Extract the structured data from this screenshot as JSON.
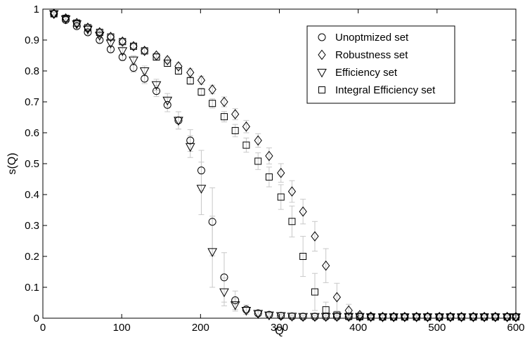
{
  "chart_data": {
    "type": "scatter",
    "xlabel": "Q",
    "ylabel": "s(Q)",
    "xlim": [
      0,
      600
    ],
    "ylim": [
      0,
      1
    ],
    "x_ticks": [
      "0",
      "100",
      "200",
      "300",
      "400",
      "500",
      "600"
    ],
    "y_ticks": [
      "0",
      "0.1",
      "0.2",
      "0.3",
      "0.4",
      "0.5",
      "0.6",
      "0.7",
      "0.8",
      "0.9",
      "1"
    ],
    "grid": false,
    "legend_position": "top-right",
    "error_bar_color": "#c8c8c8",
    "series": [
      {
        "name": "Unoptmized set",
        "marker": "circle",
        "x": [
          14,
          29,
          43,
          57,
          72,
          86,
          101,
          115,
          129,
          144,
          158,
          172,
          187,
          201,
          215,
          230,
          244,
          258,
          273,
          287,
          302,
          316,
          330,
          345,
          359,
          373,
          388,
          402,
          416,
          431,
          445,
          459,
          474,
          488,
          503,
          517,
          531,
          546,
          560,
          574,
          589,
          600
        ],
        "y": [
          0.985,
          0.965,
          0.945,
          0.925,
          0.9,
          0.87,
          0.845,
          0.81,
          0.775,
          0.735,
          0.69,
          0.64,
          0.575,
          0.478,
          0.312,
          0.132,
          0.058,
          0.028,
          0.016,
          0.011,
          0.008,
          0.006,
          0.005,
          0.005,
          0.005,
          0.005,
          0.005,
          0.005,
          0.005,
          0.004,
          0.004,
          0.004,
          0.004,
          0.004,
          0.004,
          0.004,
          0.004,
          0.004,
          0.004,
          0.004,
          0.004,
          0.004
        ],
        "err": [
          0.005,
          0.006,
          0.007,
          0.008,
          0.009,
          0.01,
          0.012,
          0.014,
          0.016,
          0.018,
          0.022,
          0.028,
          0.035,
          0.065,
          0.11,
          0.08,
          0.03,
          0.015,
          0.008,
          0.006,
          0.005,
          0.004,
          0.004,
          0.004,
          0.004,
          0.004,
          0.004,
          0.004,
          0.004,
          0.004,
          0.004,
          0.004,
          0.004,
          0.004,
          0.004,
          0.004,
          0.004,
          0.004,
          0.004,
          0.004,
          0.004,
          0.004
        ]
      },
      {
        "name": "Robustness set",
        "marker": "diamond",
        "x": [
          14,
          29,
          43,
          57,
          72,
          86,
          101,
          115,
          129,
          144,
          158,
          172,
          187,
          201,
          215,
          230,
          244,
          258,
          273,
          287,
          302,
          316,
          330,
          345,
          359,
          373,
          388,
          402,
          416,
          431,
          445,
          459,
          474,
          488,
          503,
          517,
          531,
          546,
          560,
          574,
          589,
          600
        ],
        "y": [
          0.985,
          0.97,
          0.955,
          0.94,
          0.925,
          0.91,
          0.895,
          0.88,
          0.865,
          0.85,
          0.835,
          0.815,
          0.795,
          0.77,
          0.74,
          0.7,
          0.66,
          0.62,
          0.575,
          0.525,
          0.47,
          0.41,
          0.345,
          0.265,
          0.17,
          0.068,
          0.025,
          0.01,
          0.005,
          0.004,
          0.004,
          0.004,
          0.004,
          0.004,
          0.004,
          0.004,
          0.004,
          0.004,
          0.004,
          0.004,
          0.004,
          0.004
        ],
        "err": [
          0.004,
          0.005,
          0.005,
          0.006,
          0.006,
          0.007,
          0.007,
          0.008,
          0.008,
          0.009,
          0.01,
          0.011,
          0.012,
          0.013,
          0.014,
          0.016,
          0.018,
          0.02,
          0.022,
          0.026,
          0.03,
          0.035,
          0.04,
          0.048,
          0.055,
          0.045,
          0.02,
          0.01,
          0.006,
          0.004,
          0.004,
          0.004,
          0.004,
          0.004,
          0.004,
          0.004,
          0.004,
          0.004,
          0.004,
          0.004,
          0.004,
          0.004
        ]
      },
      {
        "name": "Efficiency set",
        "marker": "triangle-down",
        "x": [
          14,
          29,
          43,
          57,
          72,
          86,
          101,
          115,
          129,
          144,
          158,
          172,
          187,
          201,
          215,
          230,
          244,
          258,
          273,
          287,
          302,
          316,
          330,
          345,
          359,
          373,
          388,
          402,
          416,
          431,
          445,
          459,
          474,
          488,
          503,
          517,
          531,
          546,
          560,
          574,
          589,
          600
        ],
        "y": [
          0.985,
          0.968,
          0.952,
          0.935,
          0.915,
          0.89,
          0.865,
          0.835,
          0.8,
          0.755,
          0.705,
          0.64,
          0.555,
          0.42,
          0.215,
          0.085,
          0.043,
          0.025,
          0.015,
          0.01,
          0.008,
          0.006,
          0.005,
          0.005,
          0.005,
          0.005,
          0.005,
          0.005,
          0.004,
          0.004,
          0.004,
          0.004,
          0.004,
          0.004,
          0.004,
          0.004,
          0.004,
          0.004,
          0.004,
          0.004,
          0.004,
          0.004
        ],
        "err": [
          0.005,
          0.006,
          0.007,
          0.008,
          0.009,
          0.01,
          0.012,
          0.014,
          0.016,
          0.018,
          0.022,
          0.028,
          0.035,
          0.085,
          0.115,
          0.045,
          0.02,
          0.012,
          0.008,
          0.006,
          0.005,
          0.004,
          0.004,
          0.004,
          0.004,
          0.004,
          0.004,
          0.004,
          0.004,
          0.004,
          0.004,
          0.004,
          0.004,
          0.004,
          0.004,
          0.004,
          0.004,
          0.004,
          0.004,
          0.004,
          0.004,
          0.004
        ]
      },
      {
        "name": "Integral Efficiency set",
        "marker": "square",
        "x": [
          14,
          29,
          43,
          57,
          72,
          86,
          101,
          115,
          129,
          144,
          158,
          172,
          187,
          201,
          215,
          230,
          244,
          258,
          273,
          287,
          302,
          316,
          330,
          345,
          359,
          373,
          388,
          402,
          416,
          431,
          445,
          459,
          474,
          488,
          503,
          517,
          531,
          546,
          560,
          574,
          589,
          600
        ],
        "y": [
          0.985,
          0.97,
          0.955,
          0.94,
          0.925,
          0.91,
          0.895,
          0.88,
          0.865,
          0.845,
          0.825,
          0.8,
          0.768,
          0.732,
          0.695,
          0.652,
          0.607,
          0.56,
          0.508,
          0.457,
          0.392,
          0.313,
          0.2,
          0.085,
          0.027,
          0.01,
          0.006,
          0.005,
          0.004,
          0.004,
          0.004,
          0.004,
          0.004,
          0.004,
          0.004,
          0.004,
          0.004,
          0.004,
          0.004,
          0.004,
          0.004,
          0.004
        ],
        "err": [
          0.004,
          0.005,
          0.005,
          0.006,
          0.006,
          0.007,
          0.007,
          0.008,
          0.008,
          0.009,
          0.01,
          0.011,
          0.012,
          0.013,
          0.015,
          0.017,
          0.02,
          0.023,
          0.027,
          0.032,
          0.04,
          0.05,
          0.065,
          0.06,
          0.025,
          0.01,
          0.006,
          0.005,
          0.004,
          0.004,
          0.004,
          0.004,
          0.004,
          0.004,
          0.004,
          0.004,
          0.004,
          0.004,
          0.004,
          0.004,
          0.004,
          0.004
        ]
      }
    ]
  }
}
